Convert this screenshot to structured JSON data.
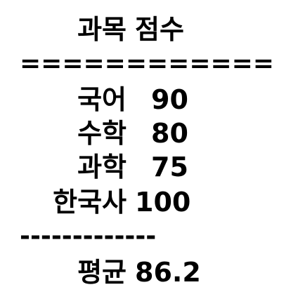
{
  "header": {
    "subject_label": "과목",
    "score_label": "점수"
  },
  "separator_top": "==============",
  "rows": [
    {
      "subject": "국어",
      "score": "90"
    },
    {
      "subject": "수학",
      "score": "80"
    },
    {
      "subject": "과학",
      "score": "75"
    },
    {
      "subject": "한국사",
      "score": "100"
    }
  ],
  "separator_bottom": "-------------",
  "footer": {
    "average_label": "평균",
    "average_value": "86.2"
  }
}
